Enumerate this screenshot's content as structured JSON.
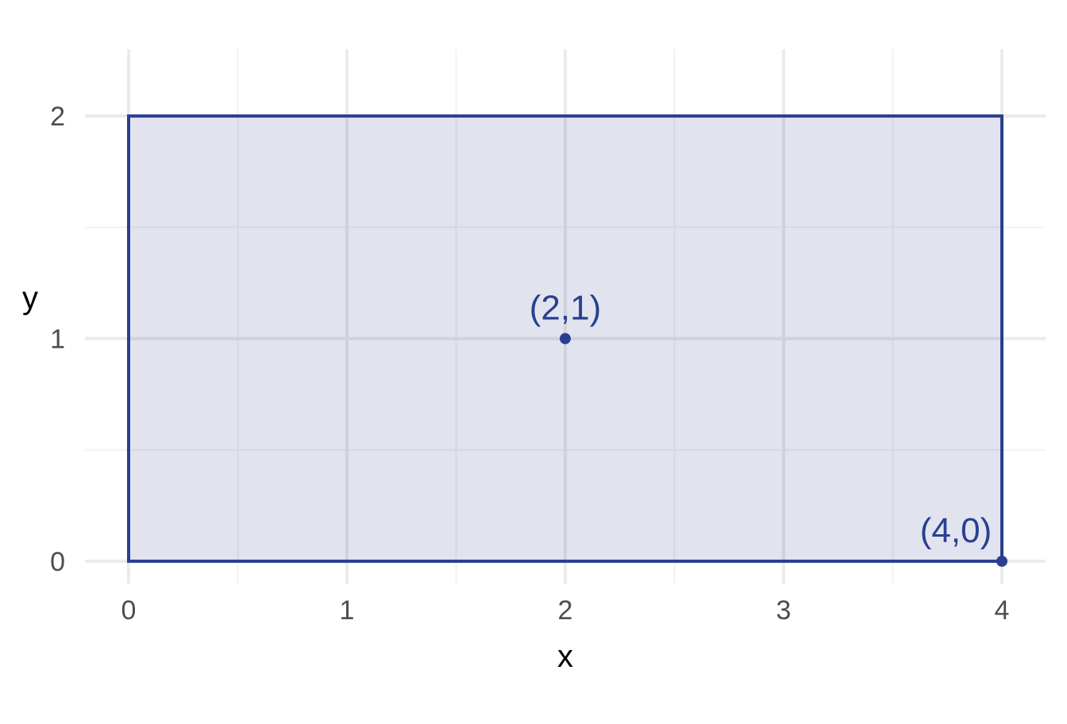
{
  "chart_data": {
    "type": "scatter",
    "title": "",
    "xlabel": "x",
    "ylabel": "y",
    "xlim": [
      -0.2,
      4.2
    ],
    "ylim": [
      -0.1,
      2.3
    ],
    "x_ticks": [
      0,
      1,
      2,
      3,
      4
    ],
    "y_ticks": [
      0,
      1,
      2
    ],
    "x_tick_labels": [
      "0",
      "1",
      "2",
      "3",
      "4"
    ],
    "y_tick_labels": [
      "0",
      "1",
      "2"
    ],
    "grid": true,
    "legend": "none",
    "rectangle": {
      "xmin": 0,
      "xmax": 4,
      "ymin": 0,
      "ymax": 2
    },
    "points": [
      {
        "x": 2,
        "y": 1,
        "label": "(2,1)"
      },
      {
        "x": 4,
        "y": 0,
        "label": "(4,0)"
      }
    ],
    "colors": {
      "accent": "#2a3f8f",
      "fill": "#dfe3ef",
      "grid_major": "#ebebeb",
      "grid_minor": "#f2f2f2",
      "tick_text": "#4d4d4d",
      "axis_title": "#000000"
    }
  }
}
